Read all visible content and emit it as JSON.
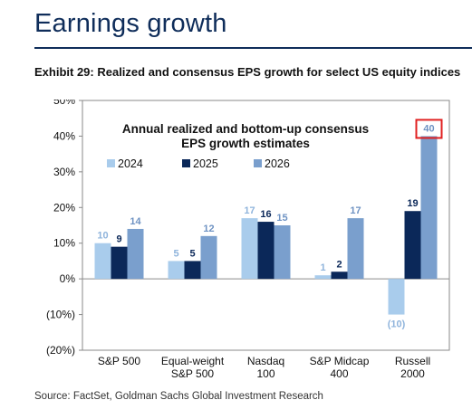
{
  "page": {
    "heading": "Earnings growth",
    "exhibit_title": "Exhibit 29: Realized and consensus EPS growth for select US equity indices",
    "source": "Source: FactSet, Goldman Sachs Global Investment Research"
  },
  "chart_data": {
    "type": "bar",
    "title": "Annual realized and bottom-up consensus",
    "subtitle": "EPS growth estimates",
    "categories": [
      [
        "S&P 500"
      ],
      [
        "Equal-weight",
        "S&P 500"
      ],
      [
        "Nasdaq",
        "100"
      ],
      [
        "S&P Midcap",
        "400"
      ],
      [
        "Russell",
        "2000"
      ]
    ],
    "series": [
      {
        "name": "2024",
        "color": "#a9ccec",
        "label_color": "#8fb4dc",
        "values": [
          10,
          5,
          17,
          1,
          -10
        ],
        "labels": [
          "10",
          "5",
          "17",
          "1",
          "(10)"
        ]
      },
      {
        "name": "2025",
        "color": "#0b2859",
        "label_color": "#0b2859",
        "values": [
          9,
          5,
          16,
          2,
          19
        ],
        "labels": [
          "9",
          "5",
          "16",
          "2",
          "19"
        ]
      },
      {
        "name": "2026",
        "color": "#7a9fcd",
        "label_color": "#6f93c3",
        "values": [
          14,
          12,
          15,
          17,
          40
        ],
        "labels": [
          "14",
          "12",
          "15",
          "17",
          "40"
        ]
      }
    ],
    "ylim": [
      -20,
      50
    ],
    "yticks": [
      50,
      40,
      30,
      20,
      10,
      0,
      -10,
      -20
    ],
    "ytick_labels": [
      "50%",
      "40%",
      "30%",
      "20%",
      "10%",
      "0%",
      "(10%)",
      "(20%)"
    ],
    "xlabel": "",
    "ylabel": "",
    "grid": false,
    "legend_position": "top-center",
    "highlight": {
      "series": 2,
      "category": 4,
      "color": "#e02020"
    }
  }
}
